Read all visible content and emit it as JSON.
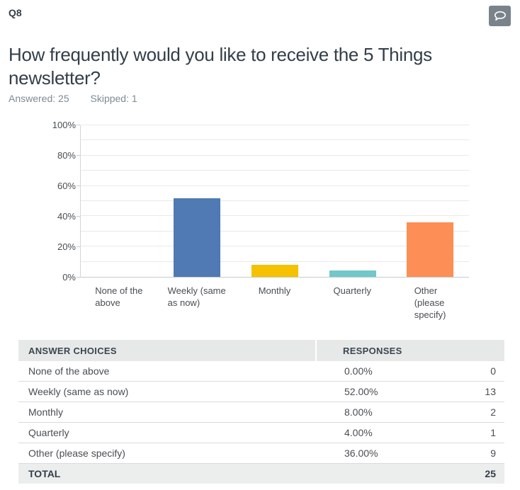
{
  "header": {
    "question_number": "Q8",
    "title": "How frequently would you like to receive the 5 Things newsletter?",
    "answered": "Answered: 25",
    "skipped": "Skipped: 1"
  },
  "colors": {
    "dark_text": "#333E48",
    "body_text": "#494E52",
    "muted_text": "#7F8A93",
    "header_bg": "#E7E9E9",
    "total_bg": "#ECEDED",
    "icon_button_bg": "#7A838B",
    "gridline": "#E9E9E9",
    "axis": "#C6CACC"
  },
  "icons": {
    "comment": "speech-bubble-icon"
  },
  "chart_data": {
    "type": "bar",
    "title": "",
    "xlabel": "",
    "ylabel": "",
    "categories": [
      "None of the above",
      "Weekly (same as now)",
      "Monthly",
      "Quarterly",
      "Other (please specify)"
    ],
    "values": [
      0,
      52,
      8,
      4,
      36
    ],
    "value_unit": "%",
    "bar_colors": [
      "transparent",
      "#4F7AB4",
      "#F5C100",
      "#71C7CA",
      "#FD8E55"
    ],
    "tick_label_lines": [
      [
        "None of the",
        "above"
      ],
      [
        "Weekly (same",
        "as now)"
      ],
      [
        "Monthly"
      ],
      [
        "Quarterly"
      ],
      [
        "Other",
        "(please",
        "specify)"
      ]
    ],
    "ylim": [
      0,
      100
    ],
    "ytick_step": 20,
    "grid_step": 10,
    "ytick_suffix": "%",
    "grid": true,
    "legend": false
  },
  "table": {
    "headers": [
      "ANSWER CHOICES",
      "RESPONSES"
    ],
    "rows": [
      {
        "label": "None of the above",
        "pct": "0.00%",
        "count": "0"
      },
      {
        "label": "Weekly (same as now)",
        "pct": "52.00%",
        "count": "13"
      },
      {
        "label": "Monthly",
        "pct": "8.00%",
        "count": "2"
      },
      {
        "label": "Quarterly",
        "pct": "4.00%",
        "count": "1"
      },
      {
        "label": "Other (please specify)",
        "pct": "36.00%",
        "count": "9"
      }
    ],
    "total_label": "TOTAL",
    "total_value": "25"
  }
}
